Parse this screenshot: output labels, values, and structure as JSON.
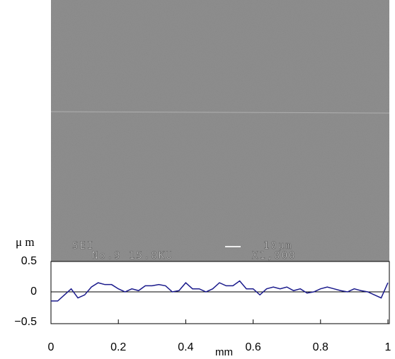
{
  "chart_data": {
    "type": "line",
    "x_label": "mm",
    "y_label": "μ m",
    "annotations": [
      "SEI",
      "No.9 15.0KU",
      "10μm",
      "X1,000"
    ],
    "x": [
      0,
      0.02,
      0.04,
      0.06,
      0.08,
      0.1,
      0.12,
      0.14,
      0.16,
      0.18,
      0.2,
      0.22,
      0.24,
      0.26,
      0.28,
      0.3,
      0.32,
      0.34,
      0.36,
      0.38,
      0.4,
      0.42,
      0.44,
      0.46,
      0.48,
      0.5,
      0.52,
      0.54,
      0.56,
      0.58,
      0.6,
      0.62,
      0.64,
      0.66,
      0.68,
      0.7,
      0.72,
      0.74,
      0.76,
      0.78,
      0.8,
      0.82,
      0.84,
      0.86,
      0.88,
      0.9,
      0.92,
      0.94,
      0.96,
      0.98,
      1
    ],
    "series": [
      {
        "color": "#1a1a8c",
        "values": [
          -0.15,
          -0.15,
          -0.05,
          0.05,
          -0.1,
          -0.05,
          0.08,
          0.15,
          0.12,
          0.12,
          0.05,
          0.0,
          0.05,
          0.02,
          0.1,
          0.1,
          0.12,
          0.1,
          0.0,
          0.02,
          0.15,
          0.05,
          0.05,
          0.0,
          0.05,
          0.15,
          0.1,
          0.1,
          0.18,
          0.05,
          0.05,
          -0.05,
          0.05,
          0.08,
          0.05,
          0.08,
          0.02,
          0.05,
          -0.02,
          0.0,
          0.05,
          0.08,
          0.05,
          0.02,
          0.0,
          0.05,
          0.02,
          0.0,
          -0.05,
          -0.1,
          0.15
        ]
      }
    ],
    "xlim": [
      0,
      1
    ],
    "xticks": [
      0,
      0.2,
      0.4,
      0.6,
      0.8,
      1
    ],
    "ylim": [
      -0.5,
      0.5
    ],
    "yticks": [
      0.5,
      0,
      {
        "value": -0.5,
        "label": "−0.5"
      }
    ]
  }
}
